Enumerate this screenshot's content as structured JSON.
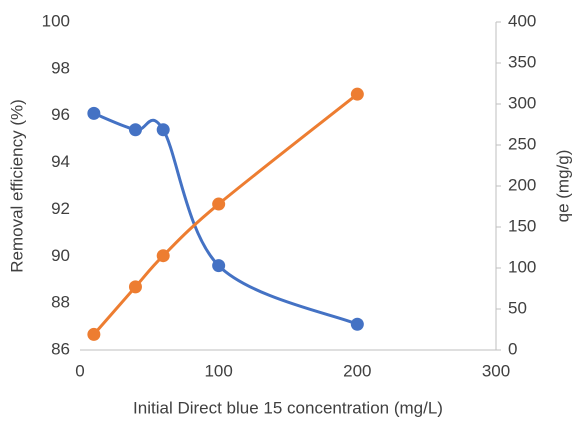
{
  "chart_data": {
    "type": "line",
    "smooth": true,
    "x": [
      10,
      40,
      60,
      100,
      200
    ],
    "series": [
      {
        "color": "#4472c4",
        "values": [
          96.1,
          95.4,
          95.4,
          89.6,
          87.1
        ],
        "axis": "y"
      },
      {
        "color": "#ed7d31",
        "values": [
          19,
          77,
          115,
          178,
          312
        ],
        "axis": "y2"
      }
    ],
    "xlabel": "Initial Direct blue 15 concentration (mg/L)",
    "ylabel": "Removal efficiency (%)",
    "y2label": "qe (mg/g)",
    "xlim": [
      0,
      300
    ],
    "xticks": [
      0,
      100,
      200,
      300
    ],
    "ylim": [
      86,
      100
    ],
    "yticks": [
      86,
      88,
      90,
      92,
      94,
      96,
      98,
      100
    ],
    "y2lim": [
      0,
      400
    ],
    "y2ticks": [
      0,
      50,
      100,
      150,
      200,
      250,
      300,
      350,
      400
    ],
    "grid": false
  }
}
